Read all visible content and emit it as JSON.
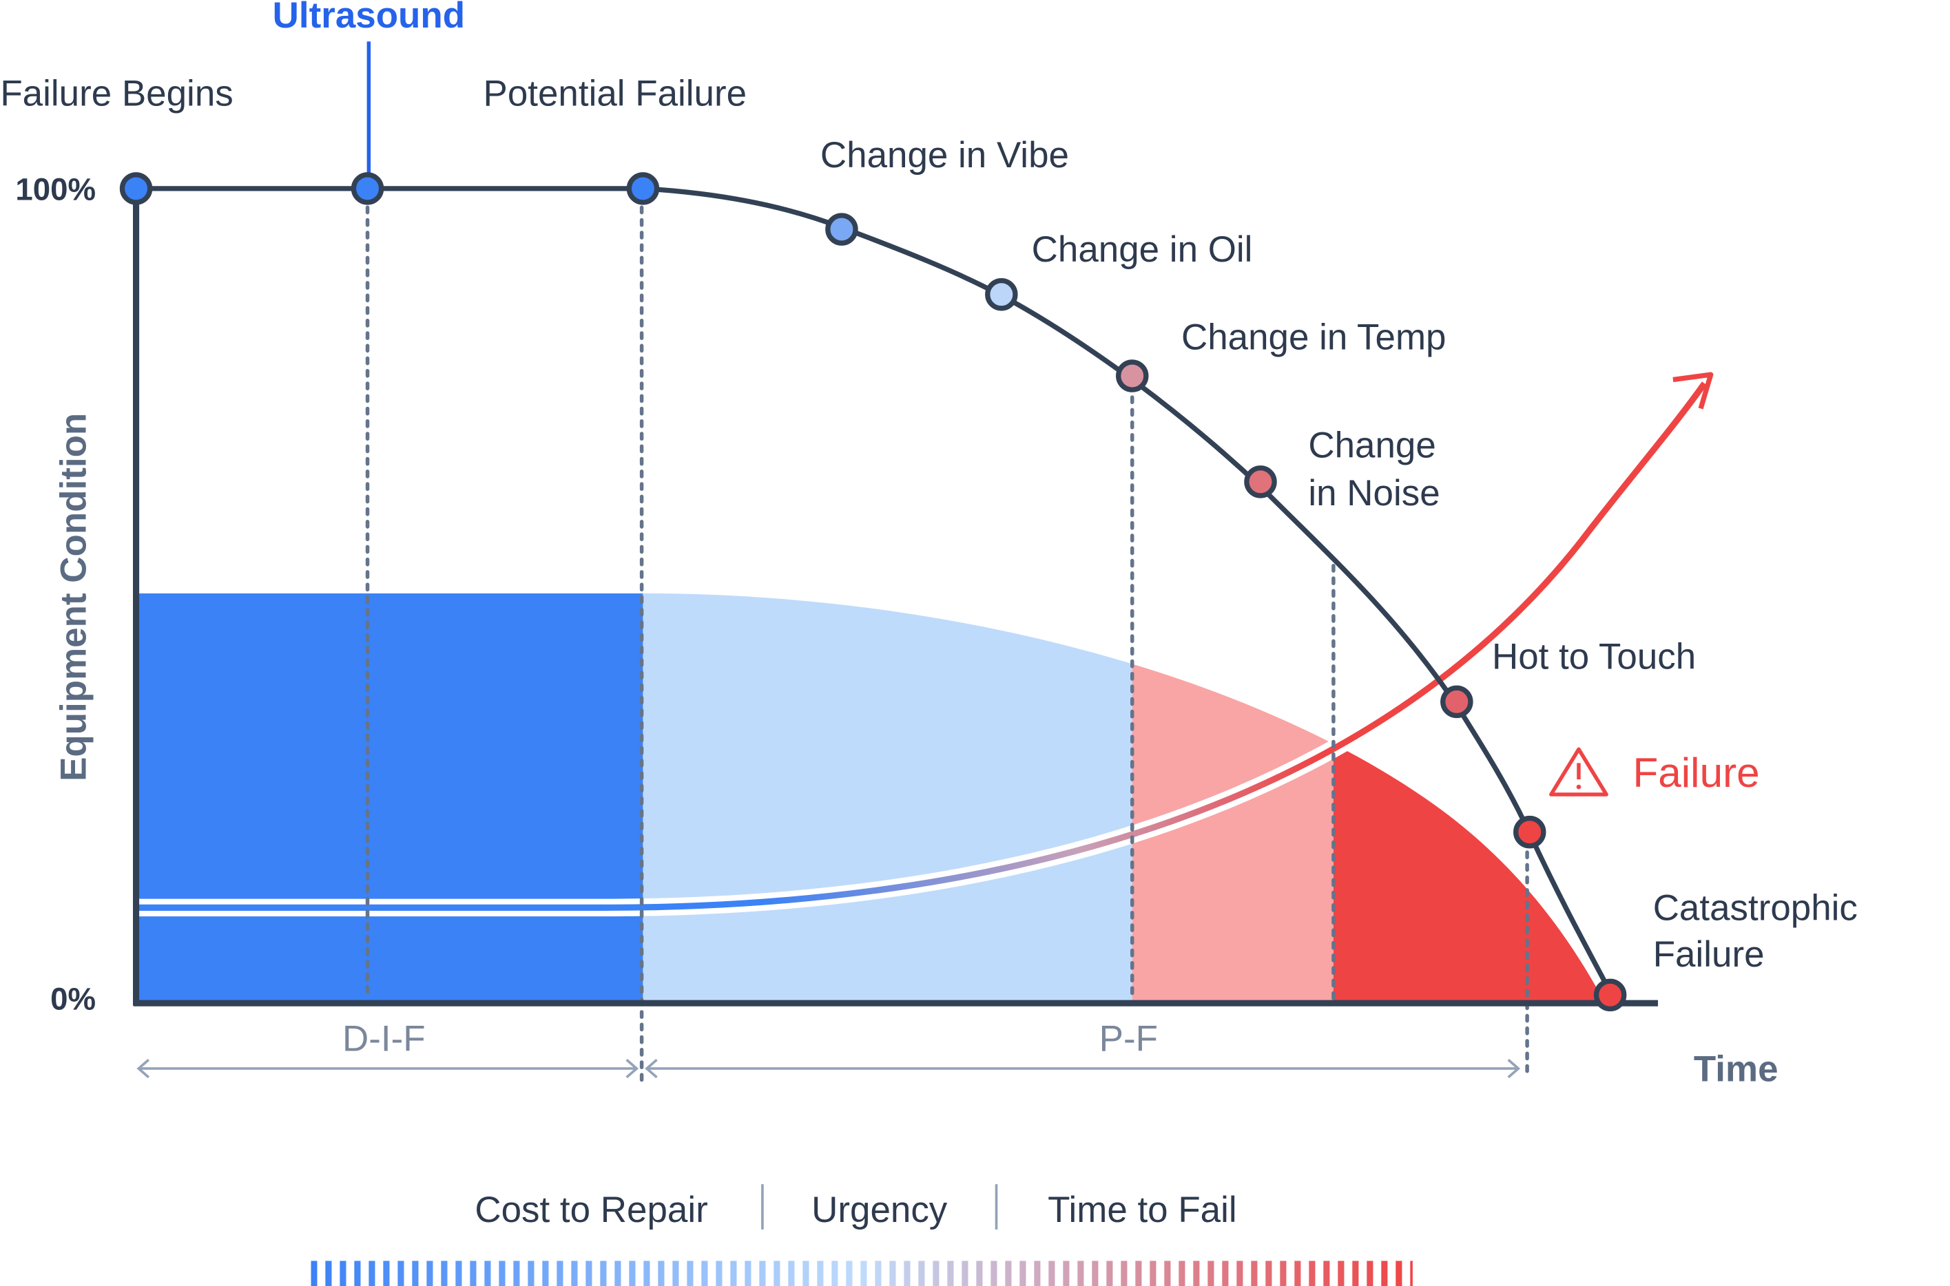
{
  "chart_data": {
    "type": "line",
    "ylabel": "Equipment Condition",
    "xlabel": "Time",
    "yticks": [
      "100%",
      "0%"
    ],
    "ylim": [
      0,
      100
    ],
    "points": [
      {
        "label": "Failure Begins",
        "condition": 100,
        "color": "#3b82f6"
      },
      {
        "label": "Ultrasound",
        "condition": 100,
        "color": "#3b82f6"
      },
      {
        "label": "Potential Failure",
        "condition": 100,
        "color": "#3b82f6"
      },
      {
        "label": "Change in Vibe",
        "condition": 95,
        "color": "#7aa8f5"
      },
      {
        "label": "Change in Oil",
        "condition": 87,
        "color": "#bcd6fa"
      },
      {
        "label": "Change in Temp",
        "condition": 77,
        "color": "#d7939f"
      },
      {
        "label": "Change in Noise",
        "condition": 64,
        "color": "#e0727a"
      },
      {
        "label": "Hot to Touch",
        "condition": 37,
        "color": "#e2626b"
      },
      {
        "label": "Failure",
        "condition": 21,
        "color": "#ef4444"
      },
      {
        "label": "Catastrophic Failure",
        "condition": 1,
        "color": "#ef4444"
      }
    ],
    "labels": {
      "failure_begins": "Failure Begins",
      "ultrasound": "Ultrasound",
      "potential_failure": "Potential Failure",
      "vibe": "Change in Vibe",
      "oil": "Change in Oil",
      "temp": "Change in Temp",
      "noise_1": "Change",
      "noise_2": "in Noise",
      "hot": "Hot to Touch",
      "failure": "Failure",
      "catastrophic_1": "Catastrophic",
      "catastrophic_2": "Failure"
    },
    "ranges": {
      "dif": "D-I-F",
      "pf": "P-F"
    },
    "legend": [
      "Cost to Repair",
      "Urgency",
      "Time to Fail"
    ],
    "colors": {
      "axis": "#334155",
      "blue": "#3b82f6",
      "light_blue": "#bfdbfb",
      "pink": "#f9a5a5",
      "red": "#ef4444",
      "ultrasound": "#2563eb",
      "dotted": "#64748b"
    }
  }
}
